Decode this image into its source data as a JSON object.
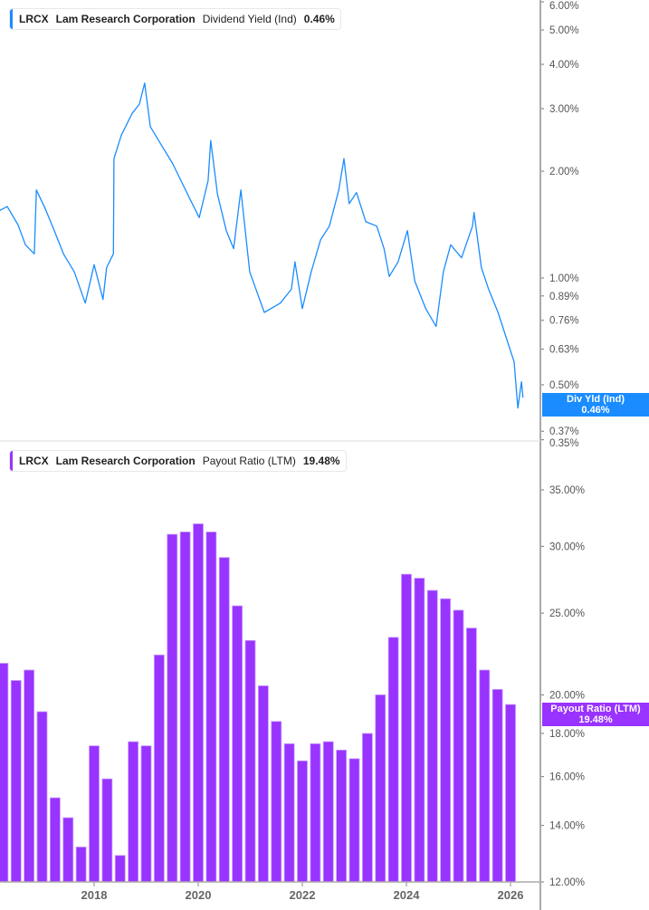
{
  "colors": {
    "yield": "#1a8cff",
    "payout": "#9933ff",
    "axis": "#aaaaaa"
  },
  "top_legend": {
    "ticker": "LRCX",
    "company": "Lam Research Corporation",
    "metric": "Dividend Yield (Ind)",
    "value": "0.46%"
  },
  "bottom_legend": {
    "ticker": "LRCX",
    "company": "Lam Research Corporation",
    "metric": "Payout Ratio (LTM)",
    "value": "19.48%"
  },
  "top_tag": {
    "label": "Div Yld (Ind)",
    "value": "0.46%"
  },
  "bottom_tag": {
    "label": "Payout Ratio (LTM)",
    "value": "19.48%"
  },
  "chart_data": [
    {
      "type": "line",
      "series": [
        {
          "name": "Dividend Yield (Ind)",
          "unit": "%",
          "points": [
            [
              2016.19,
              1.55
            ],
            [
              2016.33,
              1.59
            ],
            [
              2016.54,
              1.41
            ],
            [
              2016.68,
              1.24
            ],
            [
              2016.85,
              1.17
            ],
            [
              2016.89,
              1.77
            ],
            [
              2017.06,
              1.57
            ],
            [
              2017.27,
              1.32
            ],
            [
              2017.41,
              1.17
            ],
            [
              2017.62,
              1.04
            ],
            [
              2017.83,
              0.85
            ],
            [
              2018.0,
              1.09
            ],
            [
              2018.17,
              0.87
            ],
            [
              2018.24,
              1.07
            ],
            [
              2018.37,
              1.17
            ],
            [
              2018.38,
              2.17
            ],
            [
              2018.52,
              2.52
            ],
            [
              2018.73,
              2.91
            ],
            [
              2018.87,
              3.09
            ],
            [
              2018.97,
              3.54
            ],
            [
              2019.08,
              2.67
            ],
            [
              2019.29,
              2.37
            ],
            [
              2019.5,
              2.11
            ],
            [
              2019.67,
              1.88
            ],
            [
              2019.84,
              1.67
            ],
            [
              2020.02,
              1.48
            ],
            [
              2020.19,
              1.88
            ],
            [
              2020.24,
              2.44
            ],
            [
              2020.37,
              1.72
            ],
            [
              2020.54,
              1.36
            ],
            [
              2020.68,
              1.21
            ],
            [
              2020.82,
              1.77
            ],
            [
              2020.99,
              1.04
            ],
            [
              2021.27,
              0.8
            ],
            [
              2021.58,
              0.85
            ],
            [
              2021.79,
              0.93
            ],
            [
              2021.86,
              1.11
            ],
            [
              2022.0,
              0.82
            ],
            [
              2022.17,
              1.04
            ],
            [
              2022.35,
              1.28
            ],
            [
              2022.52,
              1.4
            ],
            [
              2022.7,
              1.77
            ],
            [
              2022.8,
              2.17
            ],
            [
              2022.9,
              1.62
            ],
            [
              2023.04,
              1.74
            ],
            [
              2023.22,
              1.44
            ],
            [
              2023.43,
              1.4
            ],
            [
              2023.57,
              1.21
            ],
            [
              2023.67,
              1.01
            ],
            [
              2023.84,
              1.11
            ],
            [
              2024.02,
              1.36
            ],
            [
              2024.16,
              0.98
            ],
            [
              2024.37,
              0.82
            ],
            [
              2024.57,
              0.73
            ],
            [
              2024.71,
              1.04
            ],
            [
              2024.85,
              1.24
            ],
            [
              2025.06,
              1.14
            ],
            [
              2025.27,
              1.4
            ],
            [
              2025.3,
              1.53
            ],
            [
              2025.44,
              1.07
            ],
            [
              2025.58,
              0.93
            ],
            [
              2025.76,
              0.8
            ],
            [
              2025.93,
              0.67
            ],
            [
              2026.07,
              0.58
            ],
            [
              2026.14,
              0.43
            ],
            [
              2026.21,
              0.51
            ],
            [
              2026.24,
              0.46
            ]
          ]
        }
      ],
      "y_scale": "log",
      "ylim": [
        0.35,
        6.0
      ],
      "y_ticks": [
        "6.00%",
        "5.00%",
        "4.00%",
        "3.00%",
        "2.00%",
        "1.00%",
        "0.89%",
        "0.76%",
        "0.63%",
        "0.50%",
        "0.37%",
        "0.35%"
      ],
      "y_tick_values": [
        6,
        5,
        4,
        3,
        2,
        1,
        0.89,
        0.76,
        0.63,
        0.5,
        0.37,
        0.35
      ],
      "grid": false,
      "legend": "top-left"
    },
    {
      "type": "bar",
      "series": [
        {
          "name": "Payout Ratio (LTM)",
          "unit": "%",
          "x": [
            2016.25,
            2016.5,
            2016.75,
            2017.0,
            2017.25,
            2017.5,
            2017.75,
            2018.0,
            2018.25,
            2018.5,
            2018.75,
            2019.0,
            2019.25,
            2019.5,
            2019.75,
            2020.0,
            2020.25,
            2020.5,
            2020.75,
            2021.0,
            2021.25,
            2021.5,
            2021.75,
            2022.0,
            2022.25,
            2022.5,
            2022.75,
            2023.0,
            2023.25,
            2023.5,
            2023.75,
            2024.0,
            2024.25,
            2024.5,
            2024.75,
            2025.0,
            2025.25,
            2025.5,
            2025.75,
            2026.0
          ],
          "values": [
            21.8,
            20.8,
            21.4,
            19.1,
            15.1,
            14.3,
            13.2,
            17.4,
            15.9,
            12.9,
            17.6,
            17.4,
            22.3,
            31.0,
            31.2,
            31.9,
            31.2,
            29.1,
            25.5,
            23.2,
            20.5,
            18.6,
            17.5,
            16.7,
            17.5,
            17.6,
            17.2,
            16.8,
            18.0,
            20.0,
            23.4,
            27.8,
            27.5,
            26.6,
            26.0,
            25.2,
            24.0,
            21.4,
            20.3,
            19.48
          ]
        }
      ],
      "y_scale": "log",
      "ylim": [
        12,
        38
      ],
      "y_ticks": [
        "35.00%",
        "30.00%",
        "25.00%",
        "20.00%",
        "18.00%",
        "16.00%",
        "14.00%",
        "12.00%"
      ],
      "y_tick_values": [
        35,
        30,
        25,
        20,
        18,
        16,
        14,
        12
      ],
      "x_ticks": [
        "2018",
        "2020",
        "2022",
        "2024",
        "2026"
      ],
      "x_tick_values": [
        2018,
        2020,
        2022,
        2024,
        2026
      ],
      "grid": false,
      "legend": "top-left"
    }
  ]
}
